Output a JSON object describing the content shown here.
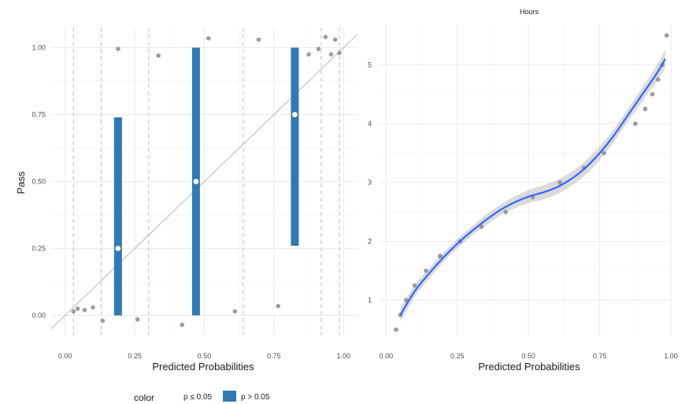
{
  "chart_data": [
    {
      "type": "scatter",
      "ylabel": "Pass",
      "xlabel": "Predicted Probabilities",
      "xlim": [
        -0.05,
        1.05
      ],
      "ylim": [
        -0.075,
        1.075
      ],
      "x_ticks": [
        "0.00",
        "0.25",
        "0.50",
        "0.75",
        "1.00"
      ],
      "x_tick_values": [
        0,
        0.25,
        0.5,
        0.75,
        1
      ],
      "y_ticks": [
        "0.00",
        "0.25",
        "0.50",
        "0.75",
        "1.00"
      ],
      "y_tick_values": [
        0,
        0.25,
        0.5,
        0.75,
        1
      ],
      "grid": true,
      "points": [
        {
          "x": 0.03,
          "y": 0.015
        },
        {
          "x": 0.045,
          "y": 0.025
        },
        {
          "x": 0.07,
          "y": 0.02
        },
        {
          "x": 0.1,
          "y": 0.03
        },
        {
          "x": 0.135,
          "y": -0.02
        },
        {
          "x": 0.19,
          "y": 0.995
        },
        {
          "x": 0.26,
          "y": -0.015
        },
        {
          "x": 0.335,
          "y": 0.97
        },
        {
          "x": 0.42,
          "y": -0.035
        },
        {
          "x": 0.515,
          "y": 1.035
        },
        {
          "x": 0.61,
          "y": 0.015
        },
        {
          "x": 0.695,
          "y": 1.03
        },
        {
          "x": 0.765,
          "y": 0.035
        },
        {
          "x": 0.875,
          "y": 0.975
        },
        {
          "x": 0.91,
          "y": 0.995
        },
        {
          "x": 0.935,
          "y": 1.04
        },
        {
          "x": 0.955,
          "y": 0.975
        },
        {
          "x": 0.97,
          "y": 1.03
        },
        {
          "x": 0.985,
          "y": 0.98
        }
      ],
      "reference_line": {
        "slope": 1,
        "intercept": 0
      },
      "bin_boundaries": [
        0.03,
        0.13,
        0.3,
        0.64,
        0.92,
        0.985
      ],
      "intervals": [
        {
          "x": 0.19,
          "low": 0.0,
          "high": 0.74,
          "mean": 0.25
        },
        {
          "x": 0.47,
          "low": 0.0,
          "high": 1.0,
          "mean": 0.5
        },
        {
          "x": 0.825,
          "low": 0.26,
          "high": 1.0,
          "mean": 0.75
        }
      ],
      "legend": {
        "title": "color",
        "position": "bottom",
        "entries": [
          {
            "label": "p ≤ 0.05",
            "color": "#ffffff"
          },
          {
            "label": "p > 0.05",
            "color": "#2f7ab5"
          }
        ]
      }
    },
    {
      "type": "scatter",
      "title": "Hours",
      "xlabel": "Predicted Probabilities",
      "xlim": [
        0.01,
        1.0
      ],
      "ylim": [
        0.4,
        5.7
      ],
      "x_ticks": [
        "0.00",
        "0.25",
        "0.50",
        "0.75",
        "1.00"
      ],
      "x_tick_values": [
        0,
        0.25,
        0.5,
        0.75,
        1
      ],
      "y_ticks": [
        "1",
        "2",
        "3",
        "4",
        "5"
      ],
      "y_tick_values": [
        1,
        2,
        3,
        4,
        5
      ],
      "grid": true,
      "points": [
        {
          "x": 0.035,
          "y": 0.5
        },
        {
          "x": 0.05,
          "y": 0.75
        },
        {
          "x": 0.07,
          "y": 1.0
        },
        {
          "x": 0.1,
          "y": 1.25
        },
        {
          "x": 0.14,
          "y": 1.5
        },
        {
          "x": 0.19,
          "y": 1.75
        },
        {
          "x": 0.19,
          "y": 1.75
        },
        {
          "x": 0.26,
          "y": 2.0
        },
        {
          "x": 0.335,
          "y": 2.25
        },
        {
          "x": 0.42,
          "y": 2.5
        },
        {
          "x": 0.515,
          "y": 2.75
        },
        {
          "x": 0.61,
          "y": 3.0
        },
        {
          "x": 0.695,
          "y": 3.25
        },
        {
          "x": 0.765,
          "y": 3.5
        },
        {
          "x": 0.875,
          "y": 4.0
        },
        {
          "x": 0.91,
          "y": 4.25
        },
        {
          "x": 0.935,
          "y": 4.5
        },
        {
          "x": 0.955,
          "y": 4.75
        },
        {
          "x": 0.97,
          "y": 5.0
        },
        {
          "x": 0.985,
          "y": 5.5
        }
      ],
      "smooth": {
        "x": [
          0.05,
          0.1,
          0.15,
          0.2,
          0.25,
          0.3,
          0.35,
          0.4,
          0.45,
          0.5,
          0.55,
          0.6,
          0.65,
          0.7,
          0.75,
          0.8,
          0.85,
          0.9,
          0.95,
          0.98
        ],
        "y": [
          0.75,
          1.15,
          1.45,
          1.72,
          1.96,
          2.17,
          2.36,
          2.53,
          2.66,
          2.76,
          2.83,
          2.92,
          3.06,
          3.25,
          3.5,
          3.8,
          4.15,
          4.5,
          4.85,
          5.1
        ],
        "band": [
          0.12,
          0.1,
          0.09,
          0.08,
          0.08,
          0.08,
          0.09,
          0.09,
          0.1,
          0.11,
          0.12,
          0.12,
          0.12,
          0.12,
          0.12,
          0.11,
          0.11,
          0.12,
          0.14,
          0.16
        ],
        "color": "#3366ff"
      }
    }
  ]
}
